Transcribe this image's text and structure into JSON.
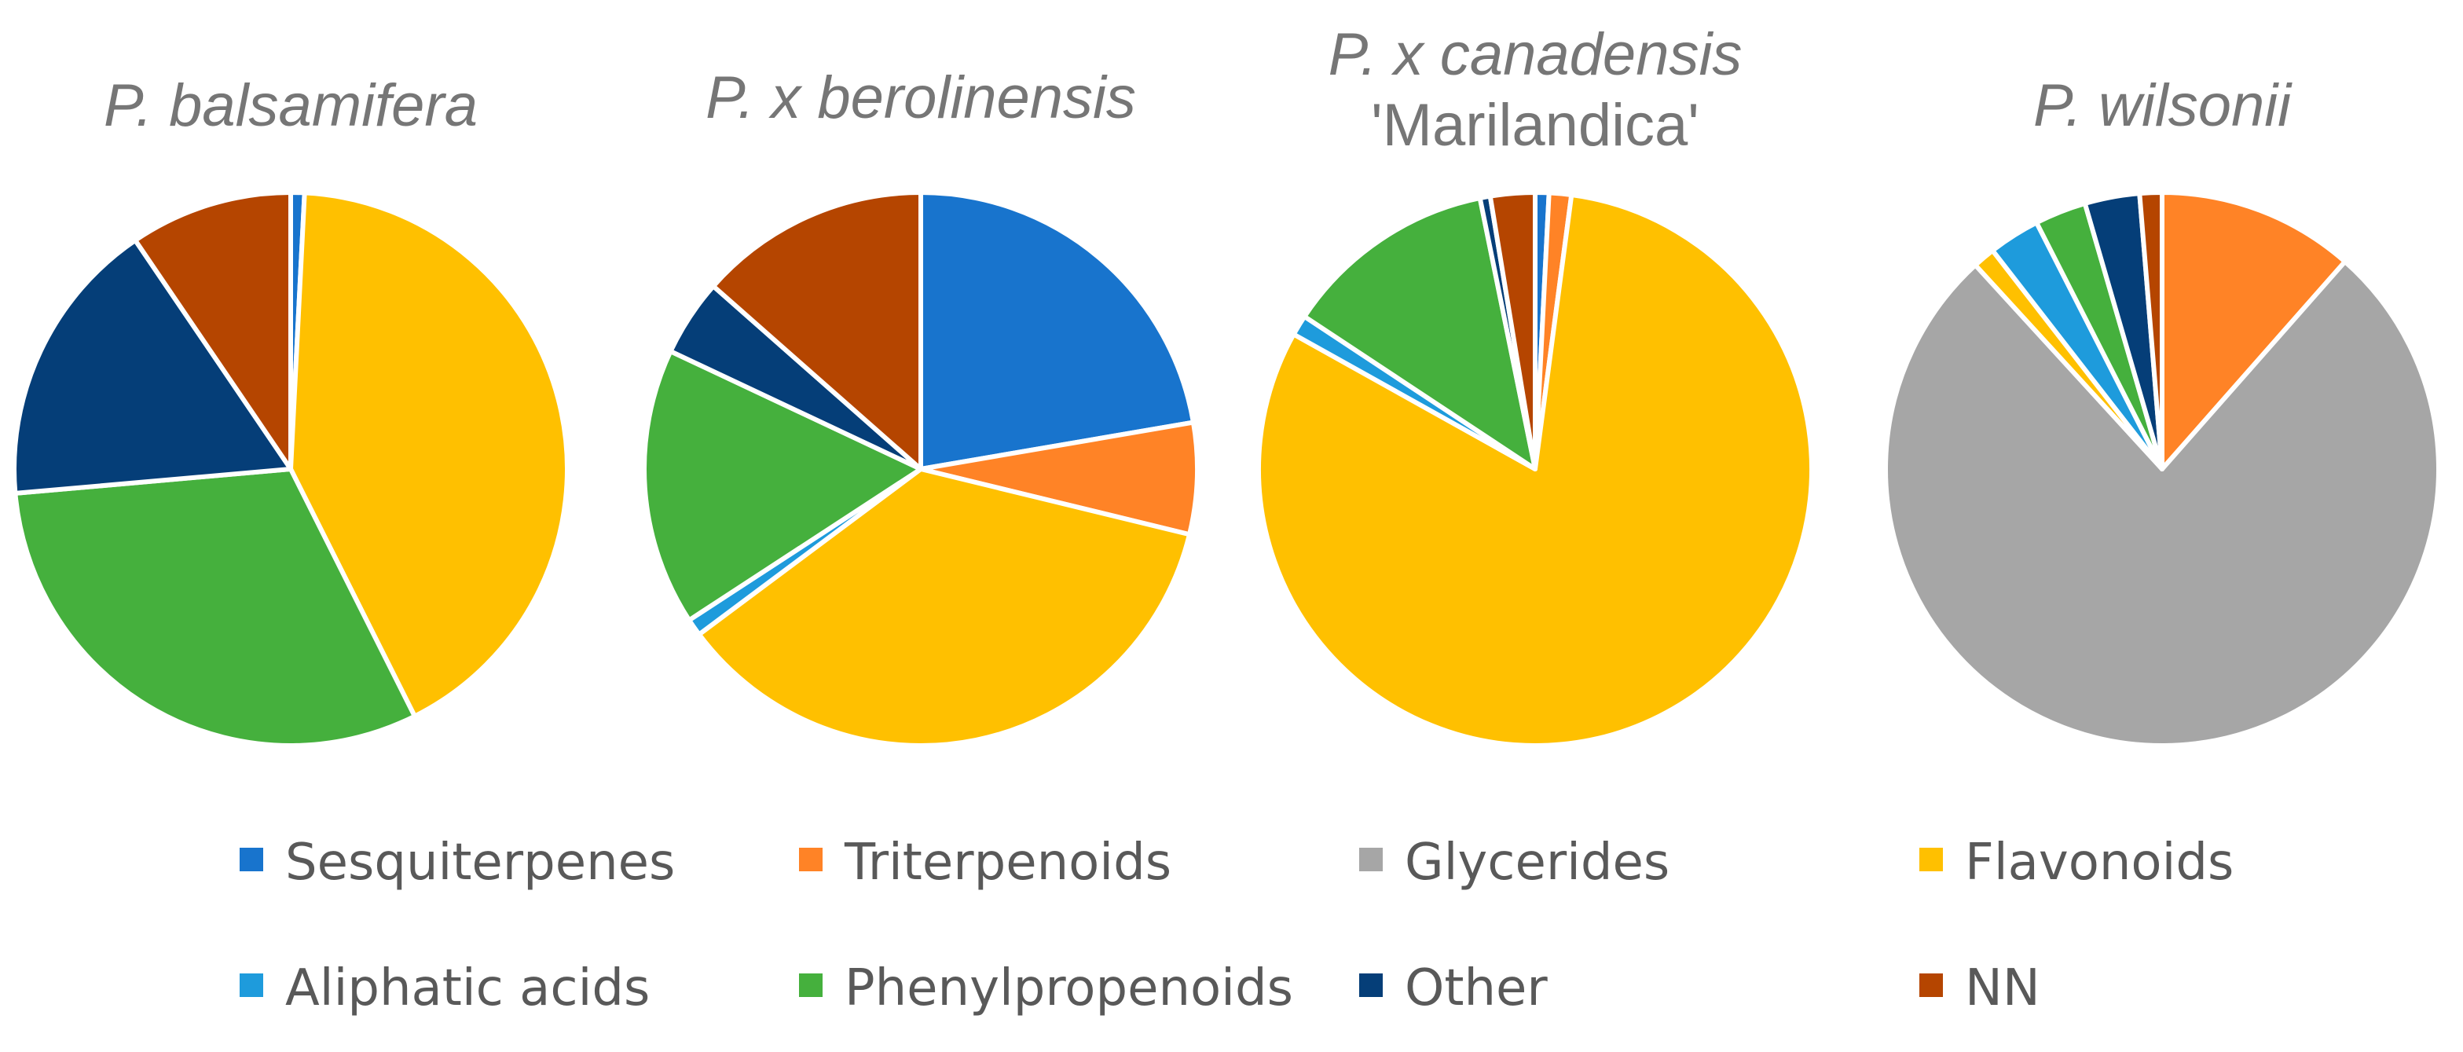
{
  "chart_data": [
    {
      "type": "pie",
      "title": [
        "P. balsamifera"
      ],
      "slices": [
        {
          "label": "Sesquiterpenes",
          "value": 0.8
        },
        {
          "label": "Triterpenoids",
          "value": 0
        },
        {
          "label": "Glycerides",
          "value": 0
        },
        {
          "label": "Flavonoids",
          "value": 41.8
        },
        {
          "label": "Aliphatic acids",
          "value": 0
        },
        {
          "label": "Phenylpropenoids",
          "value": 31.0
        },
        {
          "label": "Other",
          "value": 16.9
        },
        {
          "label": "NN",
          "value": 9.5
        }
      ]
    },
    {
      "type": "pie",
      "title": [
        "P. x berolinensis"
      ],
      "slices": [
        {
          "label": "Sesquiterpenes",
          "value": 22.3
        },
        {
          "label": "Triterpenoids",
          "value": 6.5
        },
        {
          "label": "Glycerides",
          "value": 0
        },
        {
          "label": "Flavonoids",
          "value": 36.0
        },
        {
          "label": "Aliphatic acids",
          "value": 1.0
        },
        {
          "label": "Phenylpropenoids",
          "value": 16.2
        },
        {
          "label": "Other",
          "value": 4.5
        },
        {
          "label": "NN",
          "value": 13.5
        }
      ]
    },
    {
      "type": "pie",
      "title": [
        "P. x canadensis",
        "'Marilandica'"
      ],
      "slices": [
        {
          "label": "Sesquiterpenes",
          "value": 0.8
        },
        {
          "label": "Triterpenoids",
          "value": 1.3
        },
        {
          "label": "Glycerides",
          "value": 0
        },
        {
          "label": "Flavonoids",
          "value": 81.0
        },
        {
          "label": "Aliphatic acids",
          "value": 1.2
        },
        {
          "label": "Phenylpropenoids",
          "value": 12.5
        },
        {
          "label": "Other",
          "value": 0.6
        },
        {
          "label": "NN",
          "value": 2.6
        }
      ]
    },
    {
      "type": "pie",
      "title": [
        "P. wilsonii"
      ],
      "slices": [
        {
          "label": "Sesquiterpenes",
          "value": 0
        },
        {
          "label": "Triterpenoids",
          "value": 11.5
        },
        {
          "label": "Glycerides",
          "value": 76.7
        },
        {
          "label": "Flavonoids",
          "value": 1.3
        },
        {
          "label": "Aliphatic acids",
          "value": 3.0
        },
        {
          "label": "Phenylpropenoids",
          "value": 3.0
        },
        {
          "label": "Other",
          "value": 3.2
        },
        {
          "label": "NN",
          "value": 1.3
        }
      ]
    }
  ],
  "legend": [
    {
      "label": "Sesquiterpenes",
      "color": "#1874CD"
    },
    {
      "label": "Triterpenoids",
      "color": "#FF8326"
    },
    {
      "label": "Glycerides",
      "color": "#A6A6A6"
    },
    {
      "label": "Flavonoids",
      "color": "#FFC000"
    },
    {
      "label": "Aliphatic acids",
      "color": "#1E9BDC"
    },
    {
      "label": "Phenylpropenoids",
      "color": "#45B03D"
    },
    {
      "label": "Other",
      "color": "#053E78"
    },
    {
      "label": "NN",
      "color": "#B54500"
    }
  ],
  "legend_placement": "bottom"
}
